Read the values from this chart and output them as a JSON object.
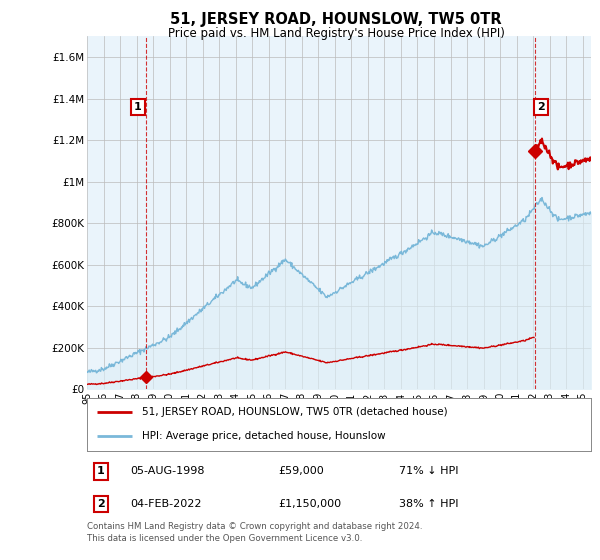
{
  "title": "51, JERSEY ROAD, HOUNSLOW, TW5 0TR",
  "subtitle": "Price paid vs. HM Land Registry's House Price Index (HPI)",
  "sale1_date": "05-AUG-1998",
  "sale1_price": 59000,
  "sale1_label": "1",
  "sale1_note": "71% ↓ HPI",
  "sale2_date": "04-FEB-2022",
  "sale2_price": 1150000,
  "sale2_label": "2",
  "sale2_note": "38% ↑ HPI",
  "legend_property": "51, JERSEY ROAD, HOUNSLOW, TW5 0TR (detached house)",
  "legend_hpi": "HPI: Average price, detached house, Hounslow",
  "footer": "Contains HM Land Registry data © Crown copyright and database right 2024.\nThis data is licensed under the Open Government Licence v3.0.",
  "hpi_color": "#7ab8d9",
  "hpi_fill_color": "#ddeef7",
  "property_color": "#cc0000",
  "background_color": "#ffffff",
  "plot_bg_color": "#eaf4fb",
  "grid_color": "#bbbbbb",
  "ylim_min": 0,
  "ylim_max": 1700000,
  "yticks": [
    0,
    200000,
    400000,
    600000,
    800000,
    1000000,
    1200000,
    1400000,
    1600000
  ],
  "ytick_labels": [
    "£0",
    "£200K",
    "£400K",
    "£600K",
    "£800K",
    "£1M",
    "£1.2M",
    "£1.4M",
    "£1.6M"
  ],
  "sale1_year": 1998.583,
  "sale2_year": 2022.083
}
